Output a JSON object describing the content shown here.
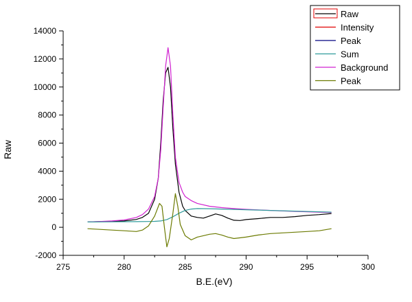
{
  "chart_data": {
    "type": "line",
    "title": "",
    "xlabel": "B.E.(eV)",
    "ylabel": "Raw",
    "xlim": [
      275,
      300
    ],
    "ylim": [
      -2000,
      14000
    ],
    "xticks": [
      275,
      280,
      285,
      290,
      295,
      300
    ],
    "yticks": [
      -2000,
      0,
      2000,
      4000,
      6000,
      8000,
      10000,
      12000,
      14000
    ],
    "legend_position": "top-right",
    "legend": [
      {
        "label": "Raw",
        "color": "#000000",
        "boxed": true
      },
      {
        "label": "Intensity",
        "color": "#e00000"
      },
      {
        "label": "Peak",
        "color": "#000080"
      },
      {
        "label": "Sum",
        "color": "#2e9a9a"
      },
      {
        "label": "Background",
        "color": "#d020d0"
      },
      {
        "label": "Peak",
        "color": "#6b7a00"
      }
    ],
    "series": [
      {
        "name": "Raw",
        "color": "#000000",
        "x": [
          277.0,
          278.0,
          279.0,
          280.0,
          281.0,
          281.5,
          282.0,
          282.5,
          282.8,
          283.0,
          283.2,
          283.4,
          283.6,
          283.8,
          284.0,
          284.2,
          284.5,
          284.8,
          285.0,
          285.5,
          286.0,
          286.5,
          287.0,
          287.5,
          288.0,
          288.5,
          289.0,
          289.5,
          290.0,
          291.0,
          292.0,
          293.0,
          294.0,
          295.0,
          296.0,
          297.0
        ],
        "y": [
          380,
          400,
          420,
          450,
          560,
          700,
          1000,
          2000,
          3500,
          6000,
          9000,
          11000,
          11400,
          10000,
          7000,
          4500,
          2500,
          1500,
          1200,
          800,
          700,
          650,
          800,
          950,
          850,
          650,
          500,
          480,
          550,
          620,
          700,
          700,
          760,
          850,
          900,
          980
        ]
      },
      {
        "name": "Background",
        "color": "#d020d0",
        "x": [
          277.0,
          278.0,
          279.0,
          280.0,
          281.0,
          281.5,
          282.0,
          282.5,
          282.8,
          283.0,
          283.2,
          283.4,
          283.6,
          283.8,
          284.0,
          284.2,
          284.5,
          284.8,
          285.0,
          285.5,
          286.0,
          287.0,
          288.0,
          289.0,
          290.0,
          292.0,
          294.0,
          296.0,
          297.0
        ],
        "y": [
          380,
          410,
          450,
          520,
          700,
          900,
          1300,
          2200,
          3500,
          5500,
          8500,
          11500,
          12800,
          11500,
          8000,
          5000,
          3200,
          2500,
          2200,
          1900,
          1700,
          1500,
          1400,
          1330,
          1280,
          1200,
          1130,
          1080,
          1050
        ]
      },
      {
        "name": "Sum",
        "color": "#2e9a9a",
        "x": [
          277.0,
          279.0,
          281.0,
          282.0,
          282.5,
          283.0,
          283.5,
          284.0,
          284.5,
          285.0,
          285.5,
          286.0,
          287.0,
          288.0,
          290.0,
          292.0,
          294.0,
          296.0,
          297.0
        ],
        "y": [
          380,
          390,
          400,
          410,
          420,
          450,
          550,
          750,
          1000,
          1200,
          1300,
          1330,
          1320,
          1300,
          1250,
          1200,
          1150,
          1100,
          1080
        ]
      },
      {
        "name": "Peak",
        "color": "#6b7a00",
        "x": [
          277.0,
          278.0,
          279.0,
          280.0,
          281.0,
          281.5,
          282.0,
          282.5,
          282.9,
          283.1,
          283.3,
          283.5,
          283.7,
          284.0,
          284.2,
          284.4,
          284.6,
          285.0,
          285.5,
          286.0,
          286.5,
          287.0,
          287.5,
          288.0,
          288.5,
          289.0,
          289.5,
          290.0,
          291.0,
          292.0,
          293.0,
          294.0,
          295.0,
          296.0,
          297.0
        ],
        "y": [
          -100,
          -150,
          -200,
          -250,
          -300,
          -200,
          100,
          800,
          1700,
          1500,
          0,
          -1400,
          -800,
          1000,
          2400,
          1500,
          200,
          -600,
          -900,
          -700,
          -600,
          -500,
          -450,
          -550,
          -700,
          -800,
          -750,
          -700,
          -550,
          -450,
          -400,
          -350,
          -300,
          -250,
          -100
        ]
      }
    ]
  }
}
